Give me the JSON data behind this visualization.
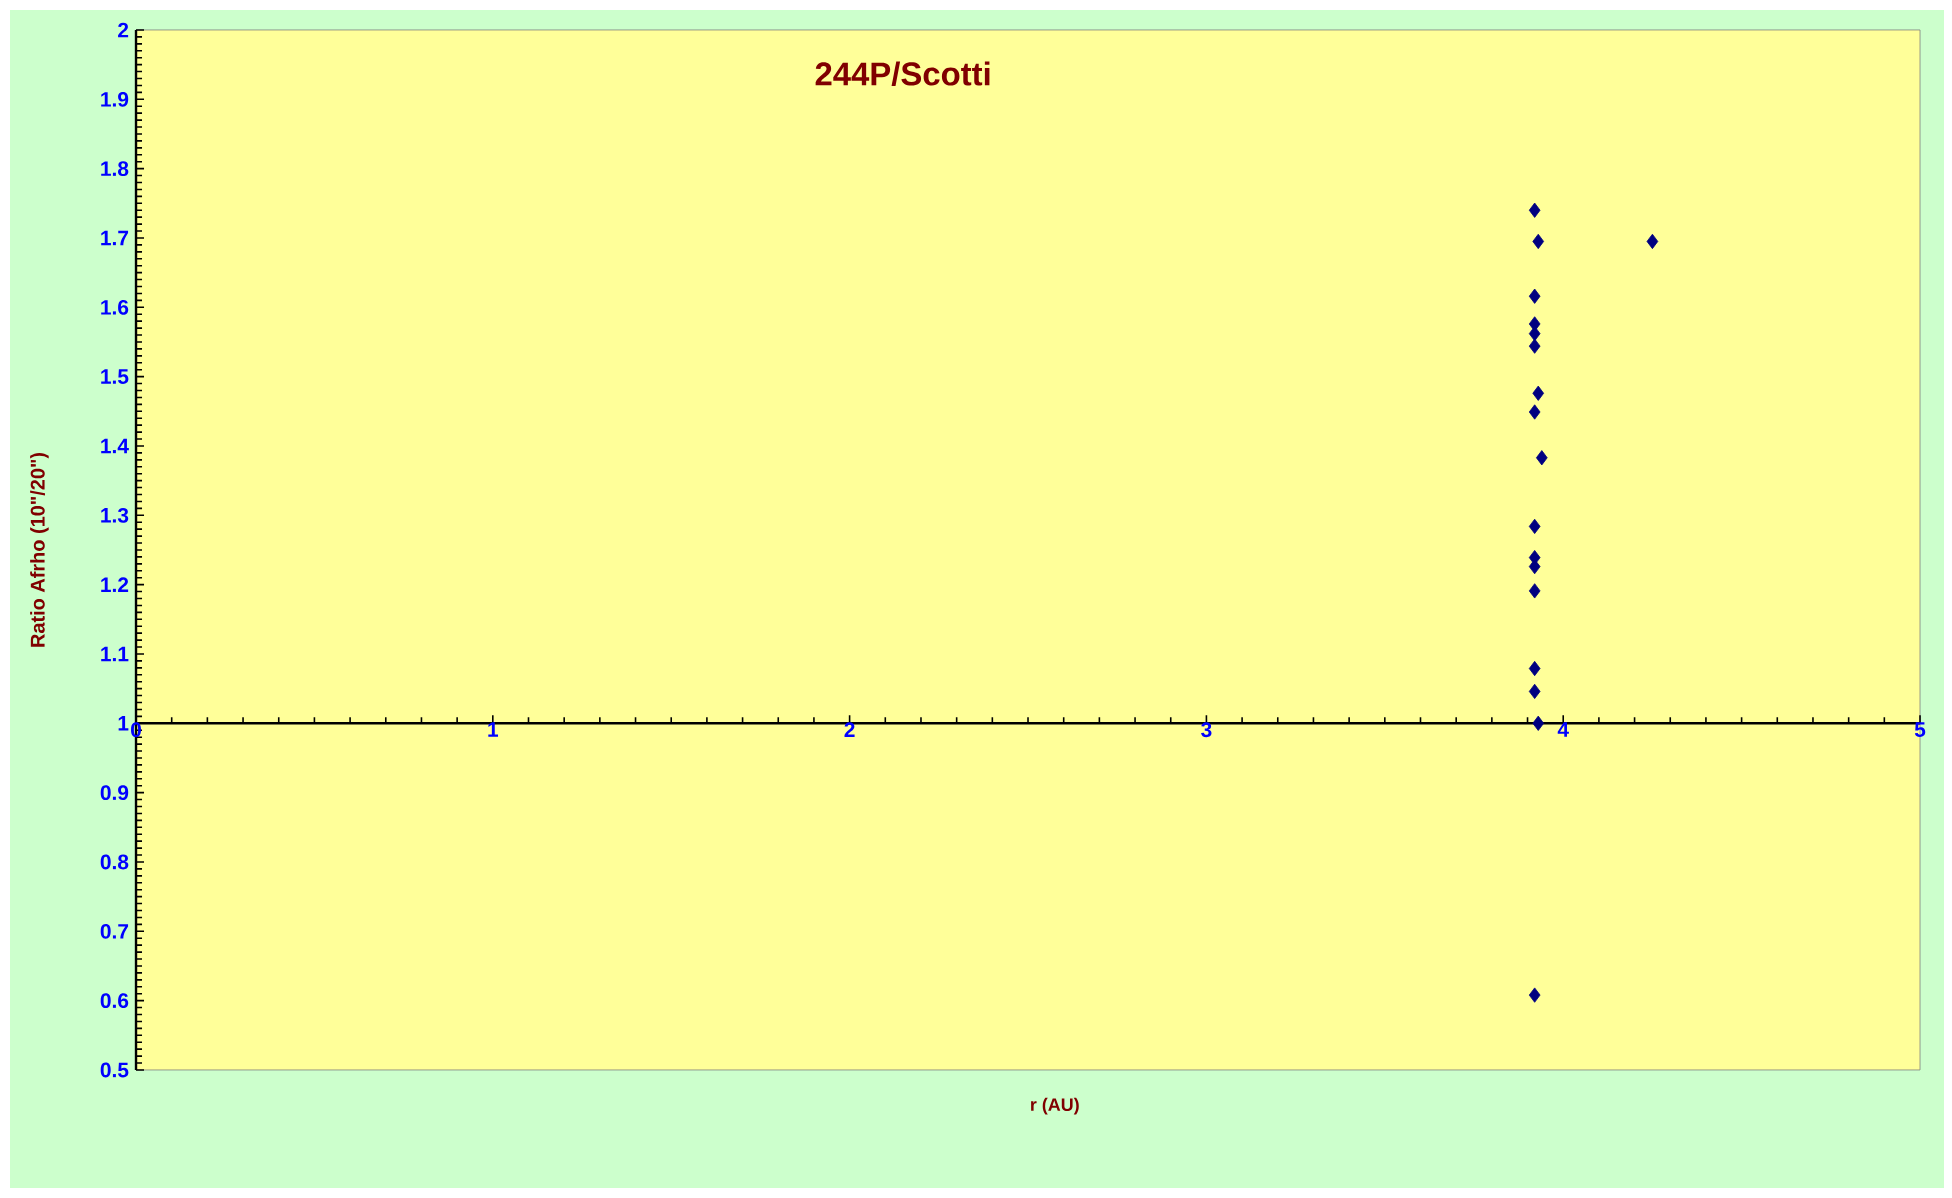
{
  "chart_data": {
    "type": "scatter",
    "title": "244P/Scotti",
    "xlabel": "r (AU)",
    "ylabel": "Ratio Afrho (10\"/20\")",
    "x": [
      3.92,
      3.93,
      4.25,
      3.92,
      3.92,
      3.92,
      3.92,
      3.93,
      3.92,
      3.94,
      3.92,
      3.92,
      3.92,
      3.92,
      3.92,
      3.92,
      3.93,
      3.92
    ],
    "values": [
      1.74,
      1.695,
      1.695,
      1.616,
      1.576,
      1.562,
      1.544,
      1.476,
      1.449,
      1.383,
      1.284,
      1.239,
      1.226,
      1.191,
      1.079,
      1.046,
      1.0,
      0.608
    ],
    "color": "#000080",
    "marker": "diamond",
    "xlim": [
      0,
      5
    ],
    "xticks": [
      0,
      1,
      2,
      3,
      4,
      5
    ],
    "ylim": [
      0.5,
      2
    ],
    "yticks": [
      0.5,
      0.6,
      0.7,
      0.8,
      0.9,
      1,
      1.1,
      1.2,
      1.3,
      1.4,
      1.5,
      1.6,
      1.7,
      1.8,
      1.9,
      2
    ],
    "grid": false
  }
}
